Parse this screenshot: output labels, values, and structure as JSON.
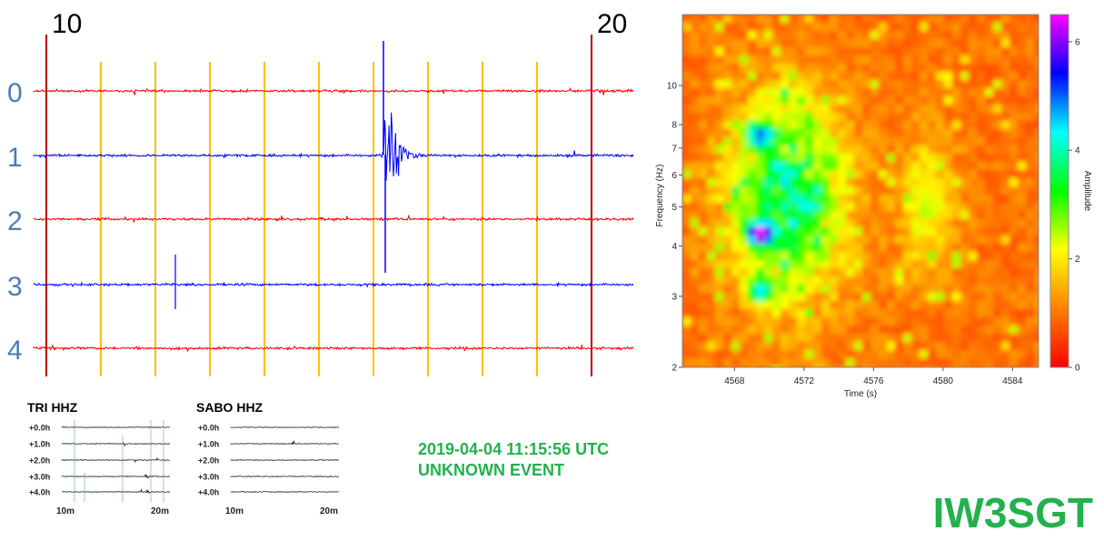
{
  "chart_data": [
    {
      "type": "line",
      "title": "",
      "chart": "helicorder",
      "x_tick_labels": [
        "10",
        "20"
      ],
      "x_range": [
        10,
        21
      ],
      "row_labels": [
        "0",
        "1",
        "2",
        "3",
        "4"
      ],
      "row_colors": [
        "#ff0000",
        "#0000ff",
        "#ff0000",
        "#0000ff",
        "#ff0000"
      ],
      "minute_marker_color": "#ffc000",
      "highlight_marker_color": "#c00000",
      "event": {
        "row": 1,
        "minute": 16.2,
        "peak_amplitude": 1.0
      }
    },
    {
      "type": "heatmap",
      "title": "",
      "chart": "spectrogram",
      "xlabel": "Time (s)",
      "ylabel": "Frequency (Hz)",
      "x_ticks": [
        4568,
        4572,
        4576,
        4580,
        4584
      ],
      "x_range": [
        4565,
        4585.5
      ],
      "y_ticks": [
        2,
        3,
        4,
        5,
        6,
        7,
        8,
        10
      ],
      "y_range": [
        2,
        15
      ],
      "y_scale": "log",
      "colorbar_label": "Amplitude",
      "colorbar_ticks": [
        0,
        2,
        4,
        6
      ],
      "colorbar_range": [
        0,
        6.5
      ],
      "colorscale": [
        "#ff0000",
        "#ff8000",
        "#ffff00",
        "#00ff00",
        "#00ffff",
        "#0000ff",
        "#ff00ff"
      ],
      "hotspots": [
        {
          "time": 4569.5,
          "freq": 4.3,
          "amplitude": 6.2
        },
        {
          "time": 4569.5,
          "freq": 7.5,
          "amplitude": 4.8
        },
        {
          "time": 4569.5,
          "freq": 3.1,
          "amplitude": 3.8
        },
        {
          "time": 4571.0,
          "freq": 6.0,
          "amplitude": 2.8
        },
        {
          "time": 4572.5,
          "freq": 5.0,
          "amplitude": 2.6
        },
        {
          "time": 4570.5,
          "freq": 9.5,
          "amplitude": 2.2
        },
        {
          "time": 4573.5,
          "freq": 6.5,
          "amplitude": 2.0
        }
      ]
    },
    {
      "type": "line",
      "title": "TRI HHZ",
      "row_labels": [
        "+0.0h",
        "+1.0h",
        "+2.0h",
        "+3.0h",
        "+4.0h"
      ],
      "x_tick_labels": [
        "10m",
        "20m"
      ],
      "events": [
        {
          "row": 1,
          "minute": 16.2,
          "amplitude": 0.9
        },
        {
          "row": 3,
          "minute": 18.5,
          "amplitude": 1.0
        },
        {
          "row": 4,
          "minute": 18.6,
          "amplitude": 0.7
        }
      ]
    },
    {
      "type": "line",
      "title": "SABO HHZ",
      "row_labels": [
        "+0.0h",
        "+1.0h",
        "+2.0h",
        "+3.0h",
        "+4.0h"
      ],
      "x_tick_labels": [
        "10m",
        "20m"
      ],
      "events": [
        {
          "row": 1,
          "minute": 16.2,
          "amplitude": 0.8
        }
      ]
    }
  ],
  "event": {
    "datetime": "2019-04-04 11:15:56 UTC",
    "type": "UNKNOWN EVENT"
  },
  "station": {
    "callsign": "IW3SGT",
    "color": "#23b14d"
  }
}
